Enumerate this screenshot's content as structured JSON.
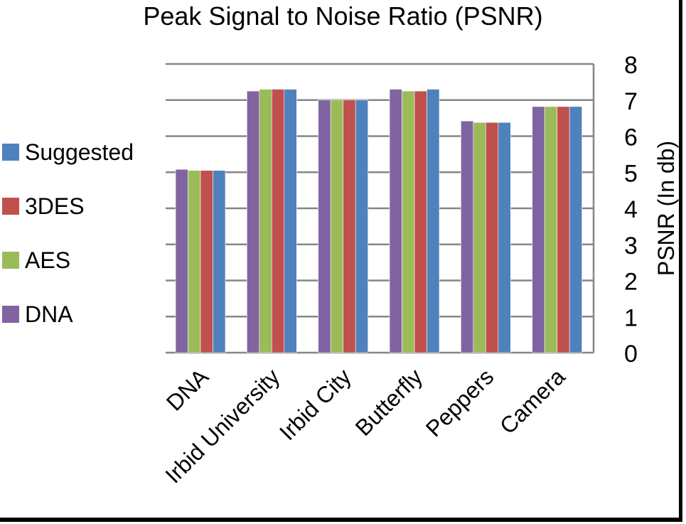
{
  "chart_data": {
    "type": "bar",
    "title": "Peak Signal to Noise Ratio (PSNR)",
    "xlabel": "",
    "ylabel": "PSNR (In db)",
    "ylim": [
      0,
      8
    ],
    "yticks": [
      "0",
      "1",
      "2",
      "3",
      "4",
      "5",
      "6",
      "7",
      "8"
    ],
    "grid": true,
    "legend_position": "left",
    "categories": [
      "DNA",
      "Irbid University",
      "Irbid City",
      "Butterfly",
      "Peppers",
      "Camera"
    ],
    "series": [
      {
        "name": "DNA",
        "color": "#8064A2",
        "values": [
          5.08,
          7.25,
          7.0,
          7.3,
          6.42,
          6.82
        ]
      },
      {
        "name": "AES",
        "color": "#9BBB59",
        "values": [
          5.05,
          7.3,
          7.0,
          7.25,
          6.38,
          6.82
        ]
      },
      {
        "name": "3DES",
        "color": "#C0504D",
        "values": [
          5.05,
          7.3,
          7.0,
          7.25,
          6.38,
          6.82
        ]
      },
      {
        "name": "Suggested",
        "color": "#4F81BD",
        "values": [
          5.05,
          7.3,
          7.0,
          7.3,
          6.38,
          6.82
        ]
      }
    ],
    "legend_order": [
      "Suggested",
      "3DES",
      "AES",
      "DNA"
    ]
  }
}
